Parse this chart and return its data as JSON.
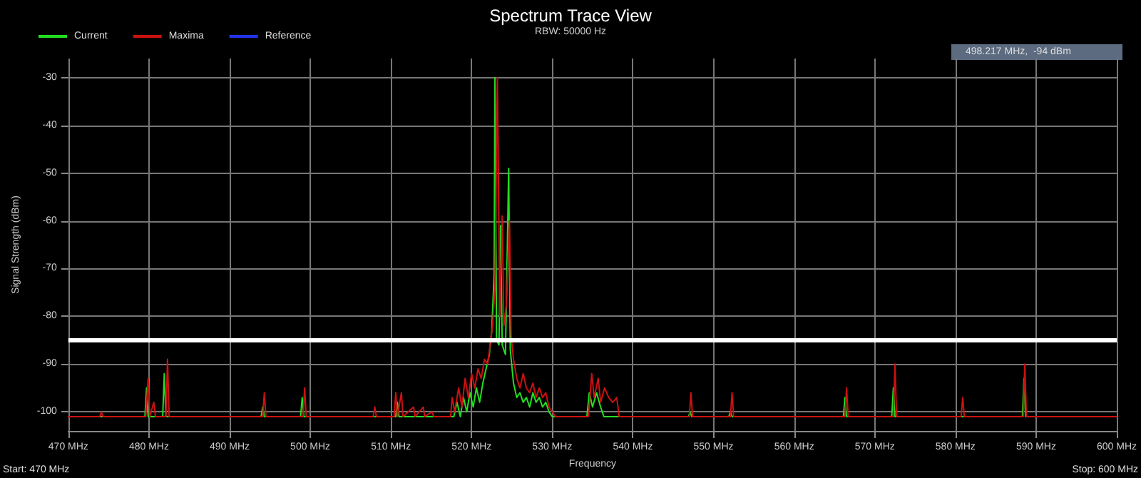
{
  "chart_data": {
    "type": "line",
    "title": "Spectrum Trace View",
    "subtitle": "RBW: 50000 Hz",
    "xlabel": "Frequency",
    "ylabel": "Signal Strength (dBm)",
    "annotations": [
      "498.217 MHz,  -94 dBm",
      "Start: 470 MHz",
      "Stop: 600 MHz"
    ],
    "series": [
      {
        "name": "Current",
        "color": "#22dd22",
        "x": [
          470,
          479.5,
          479.7,
          479.9,
          481.7,
          481.9,
          482.1,
          493.9,
          494.1,
          494.3,
          498.8,
          499.0,
          499.2,
          510.6,
          510.8,
          511.0,
          517.8,
          518.2,
          518.6,
          519.0,
          519.4,
          519.8,
          520.2,
          520.6,
          521.0,
          521.4,
          521.8,
          522.2,
          522.5,
          522.8,
          522.9,
          523.1,
          523.4,
          523.6,
          523.8,
          524.2,
          524.6,
          524.8,
          525.2,
          525.6,
          526.0,
          526.4,
          526.8,
          527.2,
          527.6,
          528.0,
          528.4,
          528.8,
          529.2,
          529.6,
          530.0,
          534.3,
          534.6,
          535.0,
          535.5,
          536.0,
          536.4,
          546.9,
          547.1,
          547.3,
          551.9,
          552.1,
          552.3,
          566.1,
          566.3,
          566.5,
          572.1,
          572.3,
          572.5,
          588.3,
          588.5,
          588.7,
          600
        ],
        "values": [
          -101,
          -101,
          -95,
          -101,
          -101,
          -92,
          -101,
          -101,
          -99,
          -101,
          -101,
          -97,
          -101,
          -101,
          -98,
          -101,
          -101,
          -98,
          -101,
          -97,
          -100,
          -96,
          -99,
          -95,
          -98,
          -94,
          -91,
          -88,
          -83,
          -71,
          -30,
          -85,
          -86,
          -61,
          -86,
          -88,
          -49,
          -87,
          -94,
          -97,
          -96,
          -98,
          -97,
          -99,
          -96,
          -98,
          -97,
          -99,
          -98,
          -100,
          -101,
          -101,
          -96,
          -99,
          -96,
          -99,
          -101,
          -101,
          -100,
          -101,
          -101,
          -100,
          -101,
          -101,
          -97,
          -101,
          -101,
          -95,
          -101,
          -101,
          -93,
          -101,
          -101
        ]
      },
      {
        "name": "Maxima",
        "color": "#cc1111",
        "x": [
          470,
          473.9,
          474.1,
          474.3,
          479.6,
          479.9,
          480.1,
          480.6,
          480.8,
          482.1,
          482.3,
          482.5,
          494.1,
          494.3,
          494.5,
          499.1,
          499.3,
          499.5,
          507.8,
          508.0,
          508.2,
          510.4,
          510.6,
          510.8,
          511.3,
          511.5,
          512.8,
          513.0,
          514.0,
          514.2,
          515.1,
          515.3,
          517.4,
          517.6,
          517.9,
          518.4,
          518.8,
          519.2,
          519.6,
          520.0,
          520.4,
          520.8,
          521.2,
          521.6,
          522.0,
          522.3,
          522.6,
          522.9,
          523.2,
          523.3,
          523.5,
          523.8,
          524.0,
          524.3,
          524.7,
          524.9,
          525.2,
          525.6,
          526.0,
          526.4,
          526.8,
          527.2,
          527.6,
          528.0,
          528.4,
          528.8,
          529.2,
          529.6,
          530.0,
          530.4,
          534.5,
          534.9,
          535.2,
          535.7,
          536.0,
          536.5,
          537.0,
          537.5,
          538.0,
          538.3,
          547.0,
          547.2,
          547.4,
          552.1,
          552.3,
          552.5,
          566.3,
          566.5,
          566.7,
          572.3,
          572.5,
          572.7,
          580.7,
          580.9,
          581.1,
          588.4,
          588.6,
          588.8,
          600
        ],
        "values": [
          -101,
          -101,
          -100,
          -101,
          -101,
          -93,
          -101,
          -98,
          -101,
          -101,
          -89,
          -101,
          -101,
          -96,
          -101,
          -101,
          -95,
          -101,
          -101,
          -99,
          -101,
          -101,
          -96,
          -101,
          -96,
          -101,
          -99,
          -101,
          -99,
          -101,
          -100,
          -101,
          -101,
          -97,
          -100,
          -95,
          -99,
          -93,
          -97,
          -92,
          -95,
          -91,
          -93,
          -89,
          -90,
          -86,
          -82,
          -74,
          -30,
          -45,
          -80,
          -59,
          -82,
          -78,
          -60,
          -84,
          -89,
          -93,
          -95,
          -92,
          -95,
          -96,
          -94,
          -97,
          -95,
          -97,
          -96,
          -99,
          -100,
          -101,
          -101,
          -92,
          -97,
          -93,
          -98,
          -95,
          -97,
          -98,
          -97,
          -101,
          -101,
          -96,
          -101,
          -101,
          -96,
          -101,
          -101,
          -95,
          -101,
          -101,
          -90,
          -101,
          -101,
          -97,
          -101,
          -101,
          -90,
          -101,
          -101
        ]
      },
      {
        "name": "Reference",
        "color": "#2233ee"
      }
    ],
    "xlim": [
      470,
      600
    ],
    "xticks": [
      {
        "value": 470,
        "label": "470 MHz"
      },
      {
        "value": 480,
        "label": "480 MHz"
      },
      {
        "value": 490,
        "label": "490 MHz"
      },
      {
        "value": 500,
        "label": "500 MHz"
      },
      {
        "value": 510,
        "label": "510 MHz"
      },
      {
        "value": 520,
        "label": "520 MHz"
      },
      {
        "value": 530,
        "label": "530 MHz"
      },
      {
        "value": 540,
        "label": "540 MHz"
      },
      {
        "value": 550,
        "label": "550 MHz"
      },
      {
        "value": 560,
        "label": "560 MHz"
      },
      {
        "value": 570,
        "label": "570 MHz"
      },
      {
        "value": 580,
        "label": "580 MHz"
      },
      {
        "value": 590,
        "label": "590 MHz"
      },
      {
        "value": 600,
        "label": "600 MHz"
      }
    ],
    "ylim": [
      -104,
      -26
    ],
    "yticks": [
      -100,
      -90,
      -80,
      -70,
      -60,
      -50,
      -40,
      -30
    ],
    "ref_lines": [
      {
        "axis": "y",
        "value": -85,
        "color": "#ffffff",
        "line_style": "solid"
      }
    ],
    "grid": true,
    "legend": "top left",
    "marker": "none",
    "line_style": "solid"
  }
}
